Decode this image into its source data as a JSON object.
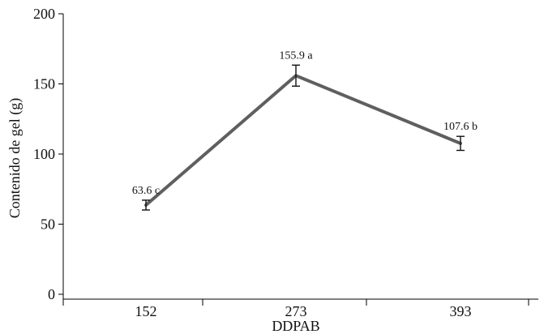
{
  "chart_data": {
    "type": "line",
    "categories": [
      "152",
      "273",
      "393"
    ],
    "series": [
      {
        "values": [
          63.6,
          155.9,
          107.6
        ],
        "errors": [
          3.5,
          7.5,
          5.0
        ],
        "labels": [
          "63.6 c",
          "155.9 a",
          "107.6 b"
        ],
        "color": "#5f5f5f"
      }
    ],
    "xlabel": "DDPAB",
    "ylabel": "Contenido de gel (g)",
    "ylim": [
      0,
      200
    ],
    "yticks": [
      0,
      50,
      100,
      150,
      200
    ],
    "ytick_labels": [
      "0",
      "50",
      "100",
      "150",
      "200"
    ],
    "grid": false,
    "legend": "none"
  }
}
